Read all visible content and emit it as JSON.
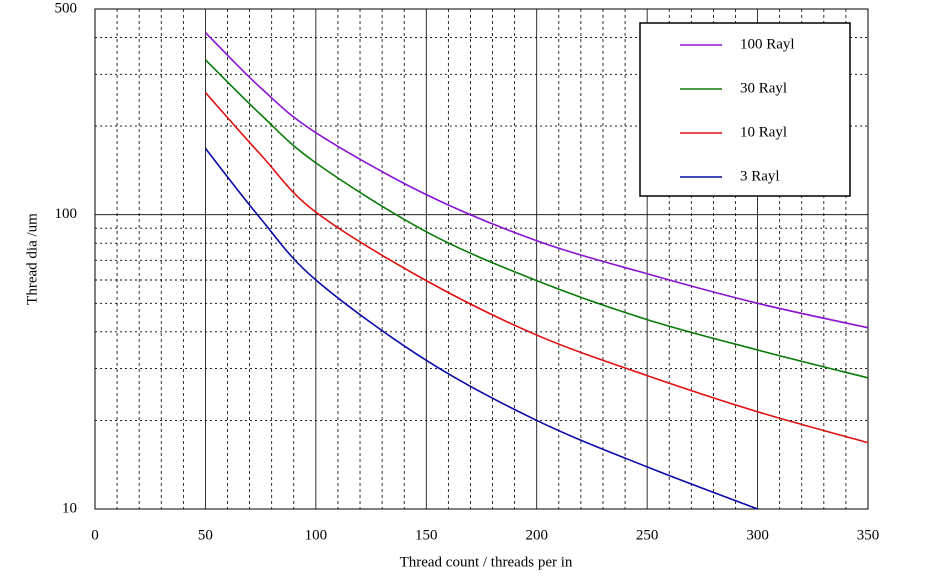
{
  "chart_data": {
    "type": "line",
    "x_label": "Thread count / threads per in",
    "y_label": "Thread dia /um",
    "x": [
      50,
      75,
      100,
      150,
      200,
      250,
      300,
      350
    ],
    "series": [
      {
        "name": "100 Rayl",
        "color": "#8a14d2",
        "values": [
          416,
          270,
          190,
          117,
          81.6,
          63,
          50,
          41.3
        ]
      },
      {
        "name": "30 Rayl",
        "color": "#0a7a0a",
        "values": [
          336,
          219,
          150,
          87.5,
          59.7,
          44,
          34.7,
          27.9
        ]
      },
      {
        "name": "10 Rayl",
        "color": "#e01010",
        "values": [
          260,
          160,
          102,
          59.7,
          39,
          28.4,
          21.4,
          16.8
        ]
      },
      {
        "name": "3 Rayl",
        "color": "#0a0aa8",
        "values": [
          168,
          97,
          60,
          32,
          20,
          13.9,
          10,
          null
        ]
      }
    ],
    "xlim": [
      0,
      350
    ],
    "xticks": [
      0,
      50,
      100,
      150,
      200,
      250,
      300,
      350
    ],
    "ylim": [
      10,
      500
    ],
    "yticks": [
      10,
      100,
      500
    ],
    "log_y": true,
    "grid": true,
    "legend": "upper right"
  }
}
